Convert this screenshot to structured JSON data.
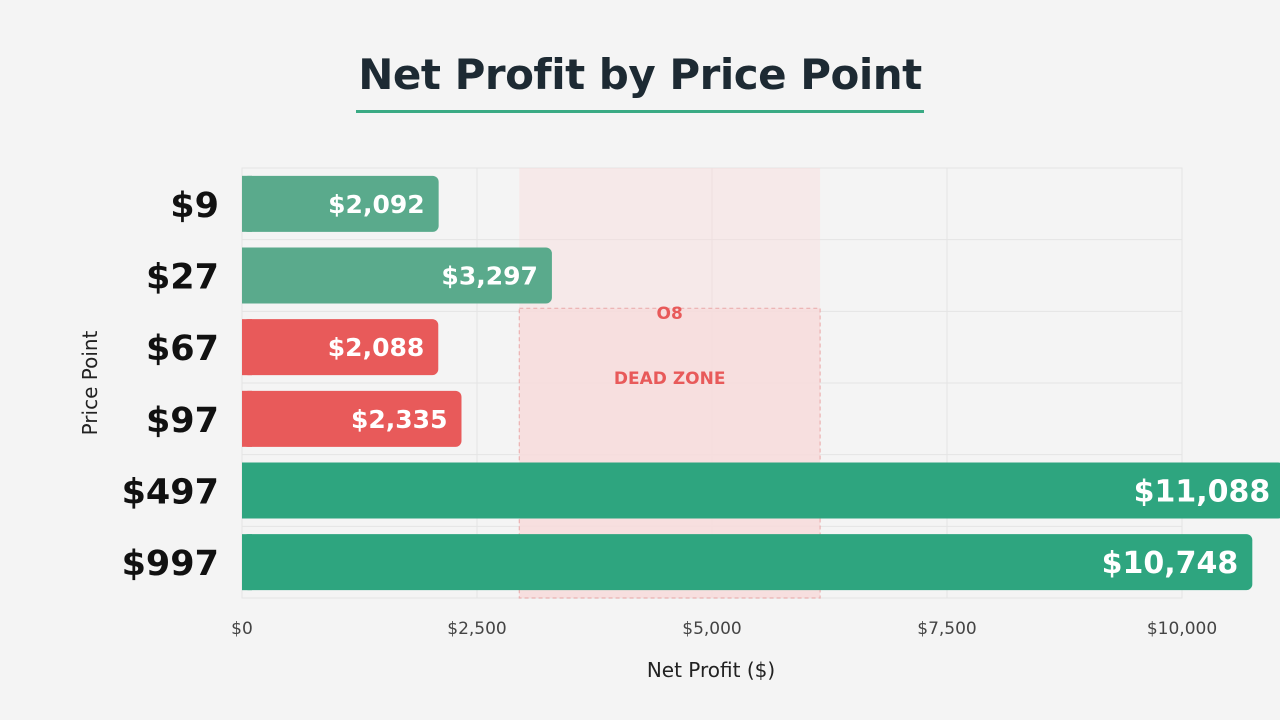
{
  "chart_data": {
    "type": "bar",
    "orientation": "horizontal",
    "title": "Net Profit by Price Point",
    "xlabel": "Net Profit ($)",
    "ylabel": "Price Point",
    "categories": [
      "$9",
      "$27",
      "$67",
      "$97",
      "$497",
      "$997"
    ],
    "values": [
      2092,
      3297,
      2088,
      2335,
      11088,
      10748
    ],
    "value_labels": [
      "$2,092",
      "$3,297",
      "$2,088",
      "$2,335",
      "$11,088",
      "$10,748"
    ],
    "bar_colors": [
      "#5aaa8c",
      "#5aaa8c",
      "#e85a5a",
      "#e85a5a",
      "#2ea57f",
      "#2ea57f"
    ],
    "xlim": [
      0,
      10000
    ],
    "xticks": [
      0,
      2500,
      5000,
      7500,
      10000
    ],
    "xtick_labels": [
      "$0",
      "$2,500",
      "$5,000",
      "$7,500",
      "$10,000"
    ],
    "grid": true,
    "highlight_category": "$497",
    "highlight_icon": "star-icon",
    "annotations": [
      {
        "text": "DEAD ZONE",
        "type": "shaded-region",
        "color": "#e85a5a"
      },
      {
        "text": "O8",
        "type": "label",
        "color": "#e85a5a"
      }
    ]
  },
  "colors": {
    "title": "#1d2a33",
    "underline": "#3aaa84",
    "star": "#e0a030",
    "dead_zone_fill": "#f8dcdc",
    "dead_zone_border": "#eaa6a6",
    "grid": "#e4e4e4"
  }
}
